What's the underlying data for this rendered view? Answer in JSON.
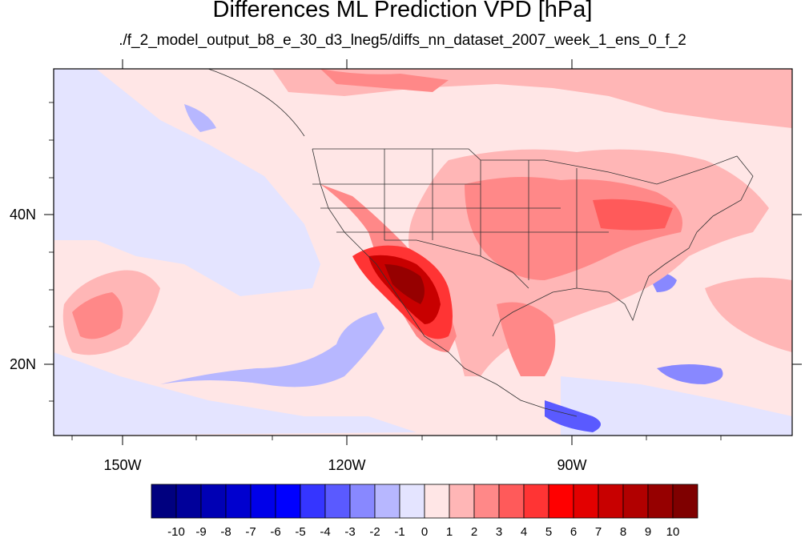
{
  "title": "Differences ML Prediction VPD [hPa]",
  "subtitle": "./f_2_model_output_b8_e_30_d3_lneg5/diffs_nn_dataset_2007_week_1_ens_0_f_2",
  "axes": {
    "lon_ticks": [
      "150W",
      "120W",
      "90W"
    ],
    "lat_ticks": [
      "40N",
      "20N"
    ]
  },
  "colorbar": {
    "labels": [
      "-10",
      "-9",
      "-8",
      "-7",
      "-6",
      "-5",
      "-4",
      "-3",
      "-2",
      "-1",
      "0",
      "1",
      "2",
      "3",
      "4",
      "5",
      "6",
      "7",
      "8",
      "9",
      "10"
    ],
    "colors": [
      "#00007f",
      "#00009a",
      "#0000b4",
      "#0000cf",
      "#0000e9",
      "#0000ff",
      "#3535ff",
      "#5a5aff",
      "#8888ff",
      "#b7b7ff",
      "#e4e4ff",
      "#ffe6e6",
      "#ffb6b6",
      "#ff8888",
      "#ff5a5a",
      "#ff3434",
      "#ff0000",
      "#e30000",
      "#c80000",
      "#b10000",
      "#960000",
      "#7f0000"
    ]
  },
  "colors": {
    "frame": "#000000",
    "background_field": "#ffe6e6",
    "border_lines": "#333333"
  }
}
